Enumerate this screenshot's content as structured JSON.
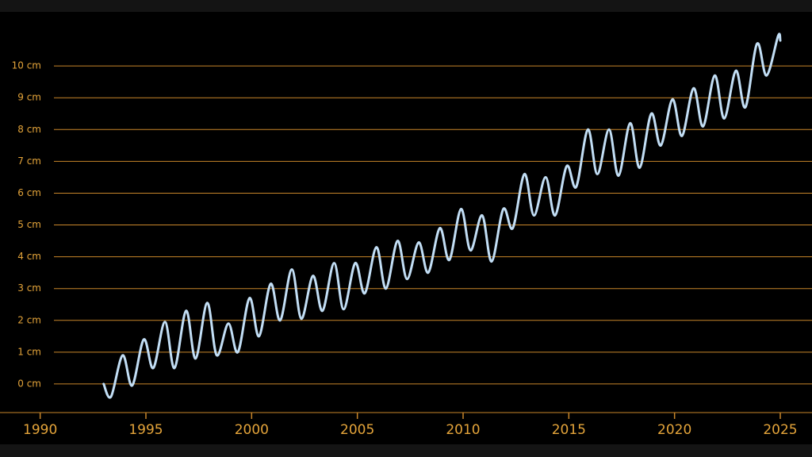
{
  "chart_data": {
    "type": "line",
    "x": [
      1993.0,
      1993.35,
      1993.9,
      1994.35,
      1994.9,
      1995.35,
      1995.9,
      1996.35,
      1996.9,
      1997.35,
      1997.9,
      1998.35,
      1998.9,
      1999.35,
      1999.9,
      2000.35,
      2000.9,
      2001.35,
      2001.9,
      2002.35,
      2002.9,
      2003.35,
      2003.9,
      2004.35,
      2004.9,
      2005.35,
      2005.9,
      2006.35,
      2006.9,
      2007.35,
      2007.9,
      2008.35,
      2008.9,
      2009.35,
      2009.9,
      2010.35,
      2010.9,
      2011.35,
      2011.9,
      2012.35,
      2012.9,
      2013.35,
      2013.9,
      2014.35,
      2014.9,
      2015.35,
      2015.9,
      2016.35,
      2016.9,
      2017.35,
      2017.9,
      2018.35,
      2018.9,
      2019.35,
      2019.9,
      2020.35,
      2020.9,
      2021.35,
      2021.9,
      2022.35,
      2022.9,
      2023.35,
      2023.9,
      2024.35,
      2024.9,
      2025.0
    ],
    "series": [
      {
        "color": "#c2def5",
        "values": [
          0,
          -0.4,
          0.9,
          -0.05,
          1.4,
          0.5,
          1.95,
          0.5,
          2.3,
          0.8,
          2.55,
          0.9,
          1.9,
          1.0,
          2.7,
          1.5,
          3.15,
          2.0,
          3.6,
          2.05,
          3.4,
          2.3,
          3.8,
          2.35,
          3.8,
          2.85,
          4.3,
          3.0,
          4.5,
          3.3,
          4.45,
          3.5,
          4.9,
          3.9,
          5.5,
          4.2,
          5.3,
          3.85,
          5.5,
          4.9,
          6.6,
          5.3,
          6.5,
          5.3,
          6.85,
          6.2,
          8.0,
          6.6,
          8.0,
          6.55,
          8.2,
          6.8,
          8.5,
          7.5,
          8.95,
          7.8,
          9.3,
          8.1,
          9.7,
          8.35,
          9.85,
          8.7,
          10.7,
          9.7,
          10.95,
          10.8
        ]
      }
    ],
    "xlim": [
      1988.1,
      2026.5
    ],
    "xticks": [
      1990,
      1995,
      2000,
      2005,
      2010,
      2015,
      2020,
      2025
    ],
    "ylim": [
      -0.9,
      11.7
    ],
    "yticks": [
      {
        "value": 0,
        "label": "0 cm"
      },
      {
        "value": 1,
        "label": "1 cm"
      },
      {
        "value": 2,
        "label": "2 cm"
      },
      {
        "value": 3,
        "label": "3 cm"
      },
      {
        "value": 4,
        "label": "4 cm"
      },
      {
        "value": 5,
        "label": "5 cm"
      },
      {
        "value": 6,
        "label": "6 cm"
      },
      {
        "value": 7,
        "label": "7 cm"
      },
      {
        "value": 8,
        "label": "8 cm"
      },
      {
        "value": 9,
        "label": "9 cm"
      },
      {
        "value": 10,
        "label": "10 cm"
      }
    ],
    "grid": true,
    "grid_color": "#c8862a"
  }
}
